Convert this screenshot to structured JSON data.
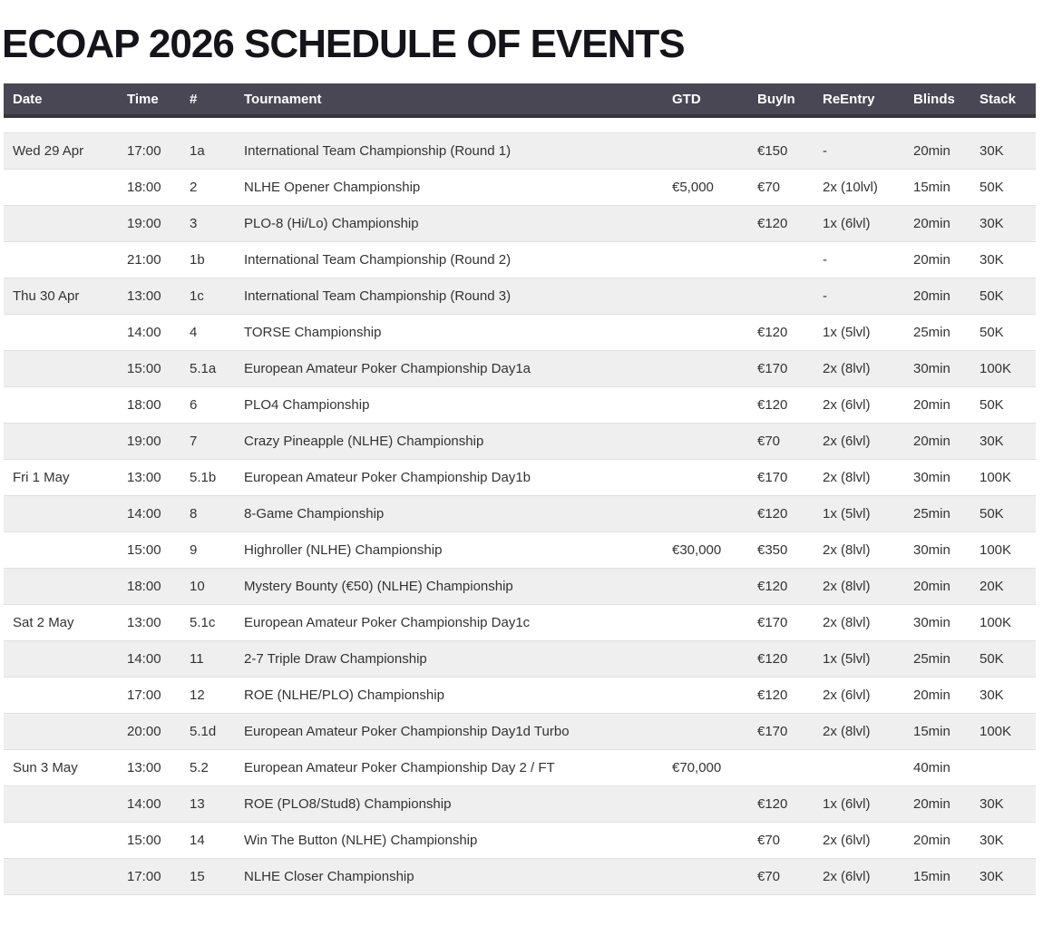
{
  "page": {
    "title": "ECOAP 2026 SCHEDULE OF EVENTS"
  },
  "colors": {
    "header_bg": "#4a4754",
    "header_border": "#38353f",
    "header_text": "#ffffff",
    "row_alt_bg": "#efefef",
    "row_bg": "#ffffff",
    "row_border": "#e0e0e0",
    "cell_text": "#333333",
    "title_text": "#14141a"
  },
  "table": {
    "columns": [
      {
        "key": "date",
        "label": "Date"
      },
      {
        "key": "time",
        "label": "Time"
      },
      {
        "key": "num",
        "label": "#"
      },
      {
        "key": "tournament",
        "label": "Tournament"
      },
      {
        "key": "gtd",
        "label": "GTD"
      },
      {
        "key": "buyin",
        "label": "BuyIn"
      },
      {
        "key": "reentry",
        "label": "ReEntry"
      },
      {
        "key": "blinds",
        "label": "Blinds"
      },
      {
        "key": "stack",
        "label": "Stack"
      }
    ],
    "rows": [
      {
        "date": "Wed 29 Apr",
        "time": "17:00",
        "num": "1a",
        "tournament": "International Team Championship (Round 1)",
        "gtd": "",
        "buyin": "€150",
        "reentry": "-",
        "blinds": "20min",
        "stack": "30K"
      },
      {
        "date": "",
        "time": "18:00",
        "num": "2",
        "tournament": "NLHE Opener Championship",
        "gtd": "€5,000",
        "buyin": "€70",
        "reentry": "2x (10lvl)",
        "blinds": "15min",
        "stack": "50K"
      },
      {
        "date": "",
        "time": "19:00",
        "num": "3",
        "tournament": "PLO-8 (Hi/Lo) Championship",
        "gtd": "",
        "buyin": "€120",
        "reentry": "1x (6lvl)",
        "blinds": "20min",
        "stack": "30K"
      },
      {
        "date": "",
        "time": "21:00",
        "num": "1b",
        "tournament": "International Team Championship (Round 2)",
        "gtd": "",
        "buyin": "",
        "reentry": "-",
        "blinds": "20min",
        "stack": "30K"
      },
      {
        "date": "Thu 30 Apr",
        "time": "13:00",
        "num": "1c",
        "tournament": "International Team Championship (Round 3)",
        "gtd": "",
        "buyin": "",
        "reentry": "-",
        "blinds": "20min",
        "stack": "50K"
      },
      {
        "date": "",
        "time": "14:00",
        "num": "4",
        "tournament": "TORSE Championship",
        "gtd": "",
        "buyin": "€120",
        "reentry": "1x (5lvl)",
        "blinds": "25min",
        "stack": "50K"
      },
      {
        "date": "",
        "time": "15:00",
        "num": "5.1a",
        "tournament": "European Amateur Poker Championship Day1a",
        "gtd": "",
        "buyin": "€170",
        "reentry": "2x (8lvl)",
        "blinds": "30min",
        "stack": "100K"
      },
      {
        "date": "",
        "time": "18:00",
        "num": "6",
        "tournament": "PLO4 Championship",
        "gtd": "",
        "buyin": "€120",
        "reentry": "2x (6lvl)",
        "blinds": "20min",
        "stack": "50K"
      },
      {
        "date": "",
        "time": "19:00",
        "num": "7",
        "tournament": "Crazy Pineapple (NLHE) Championship",
        "gtd": "",
        "buyin": "€70",
        "reentry": "2x (6lvl)",
        "blinds": "20min",
        "stack": "30K"
      },
      {
        "date": "Fri 1 May",
        "time": "13:00",
        "num": "5.1b",
        "tournament": "European Amateur Poker Championship Day1b",
        "gtd": "",
        "buyin": "€170",
        "reentry": "2x (8lvl)",
        "blinds": "30min",
        "stack": "100K"
      },
      {
        "date": "",
        "time": "14:00",
        "num": "8",
        "tournament": "8-Game Championship",
        "gtd": "",
        "buyin": "€120",
        "reentry": "1x (5lvl)",
        "blinds": "25min",
        "stack": "50K"
      },
      {
        "date": "",
        "time": "15:00",
        "num": "9",
        "tournament": "Highroller (NLHE) Championship",
        "gtd": "€30,000",
        "buyin": "€350",
        "reentry": "2x (8lvl)",
        "blinds": "30min",
        "stack": "100K"
      },
      {
        "date": "",
        "time": "18:00",
        "num": "10",
        "tournament": "Mystery Bounty (€50) (NLHE) Championship",
        "gtd": "",
        "buyin": "€120",
        "reentry": "2x (8lvl)",
        "blinds": "20min",
        "stack": "20K"
      },
      {
        "date": "Sat 2 May",
        "time": "13:00",
        "num": "5.1c",
        "tournament": "European Amateur Poker Championship Day1c",
        "gtd": "",
        "buyin": "€170",
        "reentry": "2x (8lvl)",
        "blinds": "30min",
        "stack": "100K"
      },
      {
        "date": "",
        "time": "14:00",
        "num": "11",
        "tournament": "2-7 Triple Draw Championship",
        "gtd": "",
        "buyin": "€120",
        "reentry": "1x (5lvl)",
        "blinds": "25min",
        "stack": "50K"
      },
      {
        "date": "",
        "time": "17:00",
        "num": "12",
        "tournament": "ROE (NLHE/PLO) Championship",
        "gtd": "",
        "buyin": "€120",
        "reentry": "2x (6lvl)",
        "blinds": "20min",
        "stack": "30K"
      },
      {
        "date": "",
        "time": "20:00",
        "num": "5.1d",
        "tournament": "European Amateur Poker Championship Day1d Turbo",
        "gtd": "",
        "buyin": "€170",
        "reentry": "2x (8lvl)",
        "blinds": "15min",
        "stack": "100K"
      },
      {
        "date": "Sun 3 May",
        "time": "13:00",
        "num": "5.2",
        "tournament": "European Amateur Poker Championship Day 2 / FT",
        "gtd": "€70,000",
        "buyin": "",
        "reentry": "",
        "blinds": "40min",
        "stack": ""
      },
      {
        "date": "",
        "time": "14:00",
        "num": "13",
        "tournament": "ROE (PLO8/Stud8) Championship",
        "gtd": "",
        "buyin": "€120",
        "reentry": "1x (6lvl)",
        "blinds": "20min",
        "stack": "30K"
      },
      {
        "date": "",
        "time": "15:00",
        "num": "14",
        "tournament": "Win The Button (NLHE) Championship",
        "gtd": "",
        "buyin": "€70",
        "reentry": "2x (6lvl)",
        "blinds": "20min",
        "stack": "30K"
      },
      {
        "date": "",
        "time": "17:00",
        "num": "15",
        "tournament": "NLHE Closer Championship",
        "gtd": "",
        "buyin": "€70",
        "reentry": "2x (6lvl)",
        "blinds": "15min",
        "stack": "30K"
      }
    ]
  }
}
